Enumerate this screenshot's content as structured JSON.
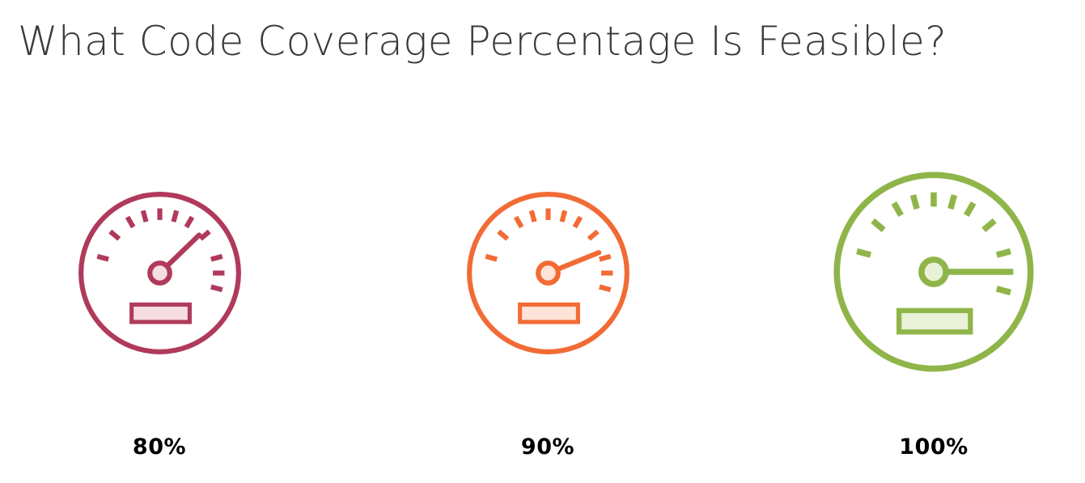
{
  "slide": {
    "title": "What Code Coverage Percentage Is Feasible?"
  },
  "gauges": [
    {
      "label": "80%",
      "icon": "speedometer-icon",
      "needle_reading": 0.8,
      "color": "#b03a5b",
      "fill": "#f6dde4"
    },
    {
      "label": "90%",
      "icon": "speedometer-icon",
      "needle_reading": 0.9,
      "color": "#f26b35",
      "fill": "#fde3d8"
    },
    {
      "label": "100%",
      "icon": "speedometer-icon",
      "needle_reading": 1.0,
      "color": "#8fb549",
      "fill": "#e9f2d8"
    }
  ]
}
